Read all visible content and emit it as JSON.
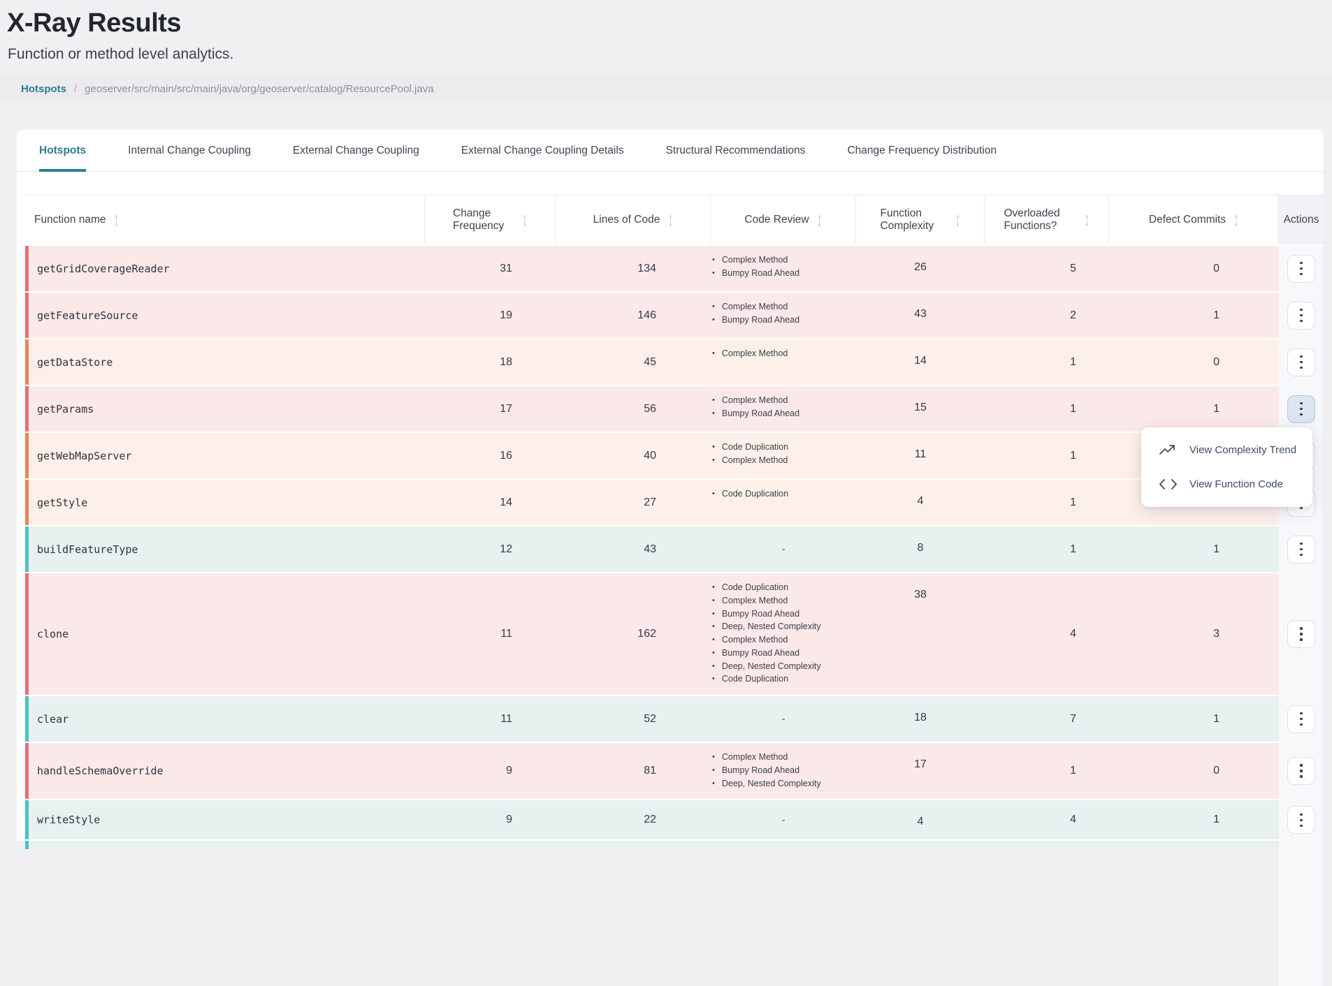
{
  "page": {
    "title": "X-Ray Results",
    "subtitle": "Function or method level analytics.",
    "breadcrumb": {
      "link": "Hotspots",
      "separator": "/",
      "current": "geoserver/src/main/src/main/java/org/geoserver/catalog/ResourcePool.java"
    }
  },
  "tabs": [
    {
      "label": "Hotspots",
      "active": true
    },
    {
      "label": "Internal Change Coupling",
      "active": false
    },
    {
      "label": "External Change Coupling",
      "active": false
    },
    {
      "label": "External Change Coupling Details",
      "active": false
    },
    {
      "label": "Structural Recommendations",
      "active": false
    },
    {
      "label": "Change Frequency Distribution",
      "active": false
    }
  ],
  "table": {
    "columns": [
      {
        "id": "name",
        "label": "Function name",
        "sortable": true,
        "wrap": false
      },
      {
        "id": "cf",
        "label": "Change Frequency",
        "sortable": true,
        "wrap": true
      },
      {
        "id": "loc",
        "label": "Lines of Code",
        "sortable": true,
        "wrap": false
      },
      {
        "id": "review",
        "label": "Code Review",
        "sortable": true,
        "wrap": false
      },
      {
        "id": "fc",
        "label": "Function Complexity",
        "sortable": true,
        "wrap": true
      },
      {
        "id": "of",
        "label": "Overloaded Functions?",
        "sortable": true,
        "wrap": true
      },
      {
        "id": "dc",
        "label": "Defect Commits",
        "sortable": true,
        "wrap": false
      },
      {
        "id": "actions",
        "label": "Actions",
        "sortable": false,
        "wrap": false
      }
    ],
    "sort_icon": "sort-arrows-icon",
    "actions_icon": "kebab-menu-icon",
    "empty_review_placeholder": "-",
    "rows": [
      {
        "function": "getGridCoverageReader",
        "change_frequency": 31,
        "lines_of_code": 134,
        "code_review": [
          "Complex Method",
          "Bumpy Road Ahead"
        ],
        "function_complexity": 26,
        "overloaded_functions": 5,
        "defect_commits": "0",
        "severity": "red"
      },
      {
        "function": "getFeatureSource",
        "change_frequency": 19,
        "lines_of_code": 146,
        "code_review": [
          "Complex Method",
          "Bumpy Road Ahead"
        ],
        "function_complexity": 43,
        "overloaded_functions": 2,
        "defect_commits": "1",
        "severity": "red"
      },
      {
        "function": "getDataStore",
        "change_frequency": 18,
        "lines_of_code": 45,
        "code_review": [
          "Complex Method"
        ],
        "function_complexity": 14,
        "overloaded_functions": 1,
        "defect_commits": "0",
        "severity": "orange"
      },
      {
        "function": "getParams",
        "change_frequency": 17,
        "lines_of_code": 56,
        "code_review": [
          "Complex Method",
          "Bumpy Road Ahead"
        ],
        "function_complexity": 15,
        "overloaded_functions": 1,
        "defect_commits": "1",
        "severity": "red",
        "actions_active": true
      },
      {
        "function": "getWebMapServer",
        "change_frequency": 16,
        "lines_of_code": 40,
        "code_review": [
          "Code Duplication",
          "Complex Method"
        ],
        "function_complexity": 11,
        "overloaded_functions": 1,
        "defect_commits": "",
        "severity": "orange"
      },
      {
        "function": "getStyle",
        "change_frequency": 14,
        "lines_of_code": 27,
        "code_review": [
          "Code Duplication"
        ],
        "function_complexity": 4,
        "overloaded_functions": 1,
        "defect_commits": "",
        "severity": "orange"
      },
      {
        "function": "buildFeatureType",
        "change_frequency": 12,
        "lines_of_code": 43,
        "code_review": [],
        "function_complexity": 8,
        "overloaded_functions": 1,
        "defect_commits": "1",
        "severity": "teal"
      },
      {
        "function": "clone",
        "change_frequency": 11,
        "lines_of_code": 162,
        "code_review": [
          "Code Duplication",
          "Complex Method",
          "Bumpy Road Ahead",
          "Deep, Nested Complexity",
          "Complex Method",
          "Bumpy Road Ahead",
          "Deep, Nested Complexity",
          "Code Duplication"
        ],
        "function_complexity": 38,
        "overloaded_functions": 4,
        "defect_commits": "3",
        "severity": "red"
      },
      {
        "function": "clear",
        "change_frequency": 11,
        "lines_of_code": 52,
        "code_review": [],
        "function_complexity": 18,
        "overloaded_functions": 7,
        "defect_commits": "1",
        "severity": "teal"
      },
      {
        "function": "handleSchemaOverride",
        "change_frequency": 9,
        "lines_of_code": 81,
        "code_review": [
          "Complex Method",
          "Bumpy Road Ahead",
          "Deep, Nested Complexity"
        ],
        "function_complexity": 17,
        "overloaded_functions": 1,
        "defect_commits": "0",
        "severity": "red"
      },
      {
        "function": "writeStyle",
        "change_frequency": 9,
        "lines_of_code": 22,
        "code_review": [],
        "function_complexity": 4,
        "overloaded_functions": 4,
        "defect_commits": "1",
        "severity": "teal"
      },
      {
        "function": "",
        "change_frequency": null,
        "lines_of_code": null,
        "code_review": [],
        "function_complexity": null,
        "overloaded_functions": null,
        "defect_commits": "",
        "severity": "teal",
        "partial": true
      }
    ]
  },
  "context_menu": {
    "items": [
      {
        "icon": "trend-line-icon",
        "label": "View Complexity Trend"
      },
      {
        "icon": "code-icon",
        "label": "View Function Code"
      }
    ]
  },
  "colors": {
    "accent": "#2d7d91",
    "page-bg": "#f0f0f3",
    "crumb-bg": "#ececef",
    "red-stripe": "#ea6d74",
    "red-row-bg": "#fbe9ea",
    "orange-stripe": "#ef8355",
    "orange-row-bg": "#fdf0ea",
    "teal-stripe": "#45c5bf",
    "teal-row-bg": "#e8f1ef"
  }
}
